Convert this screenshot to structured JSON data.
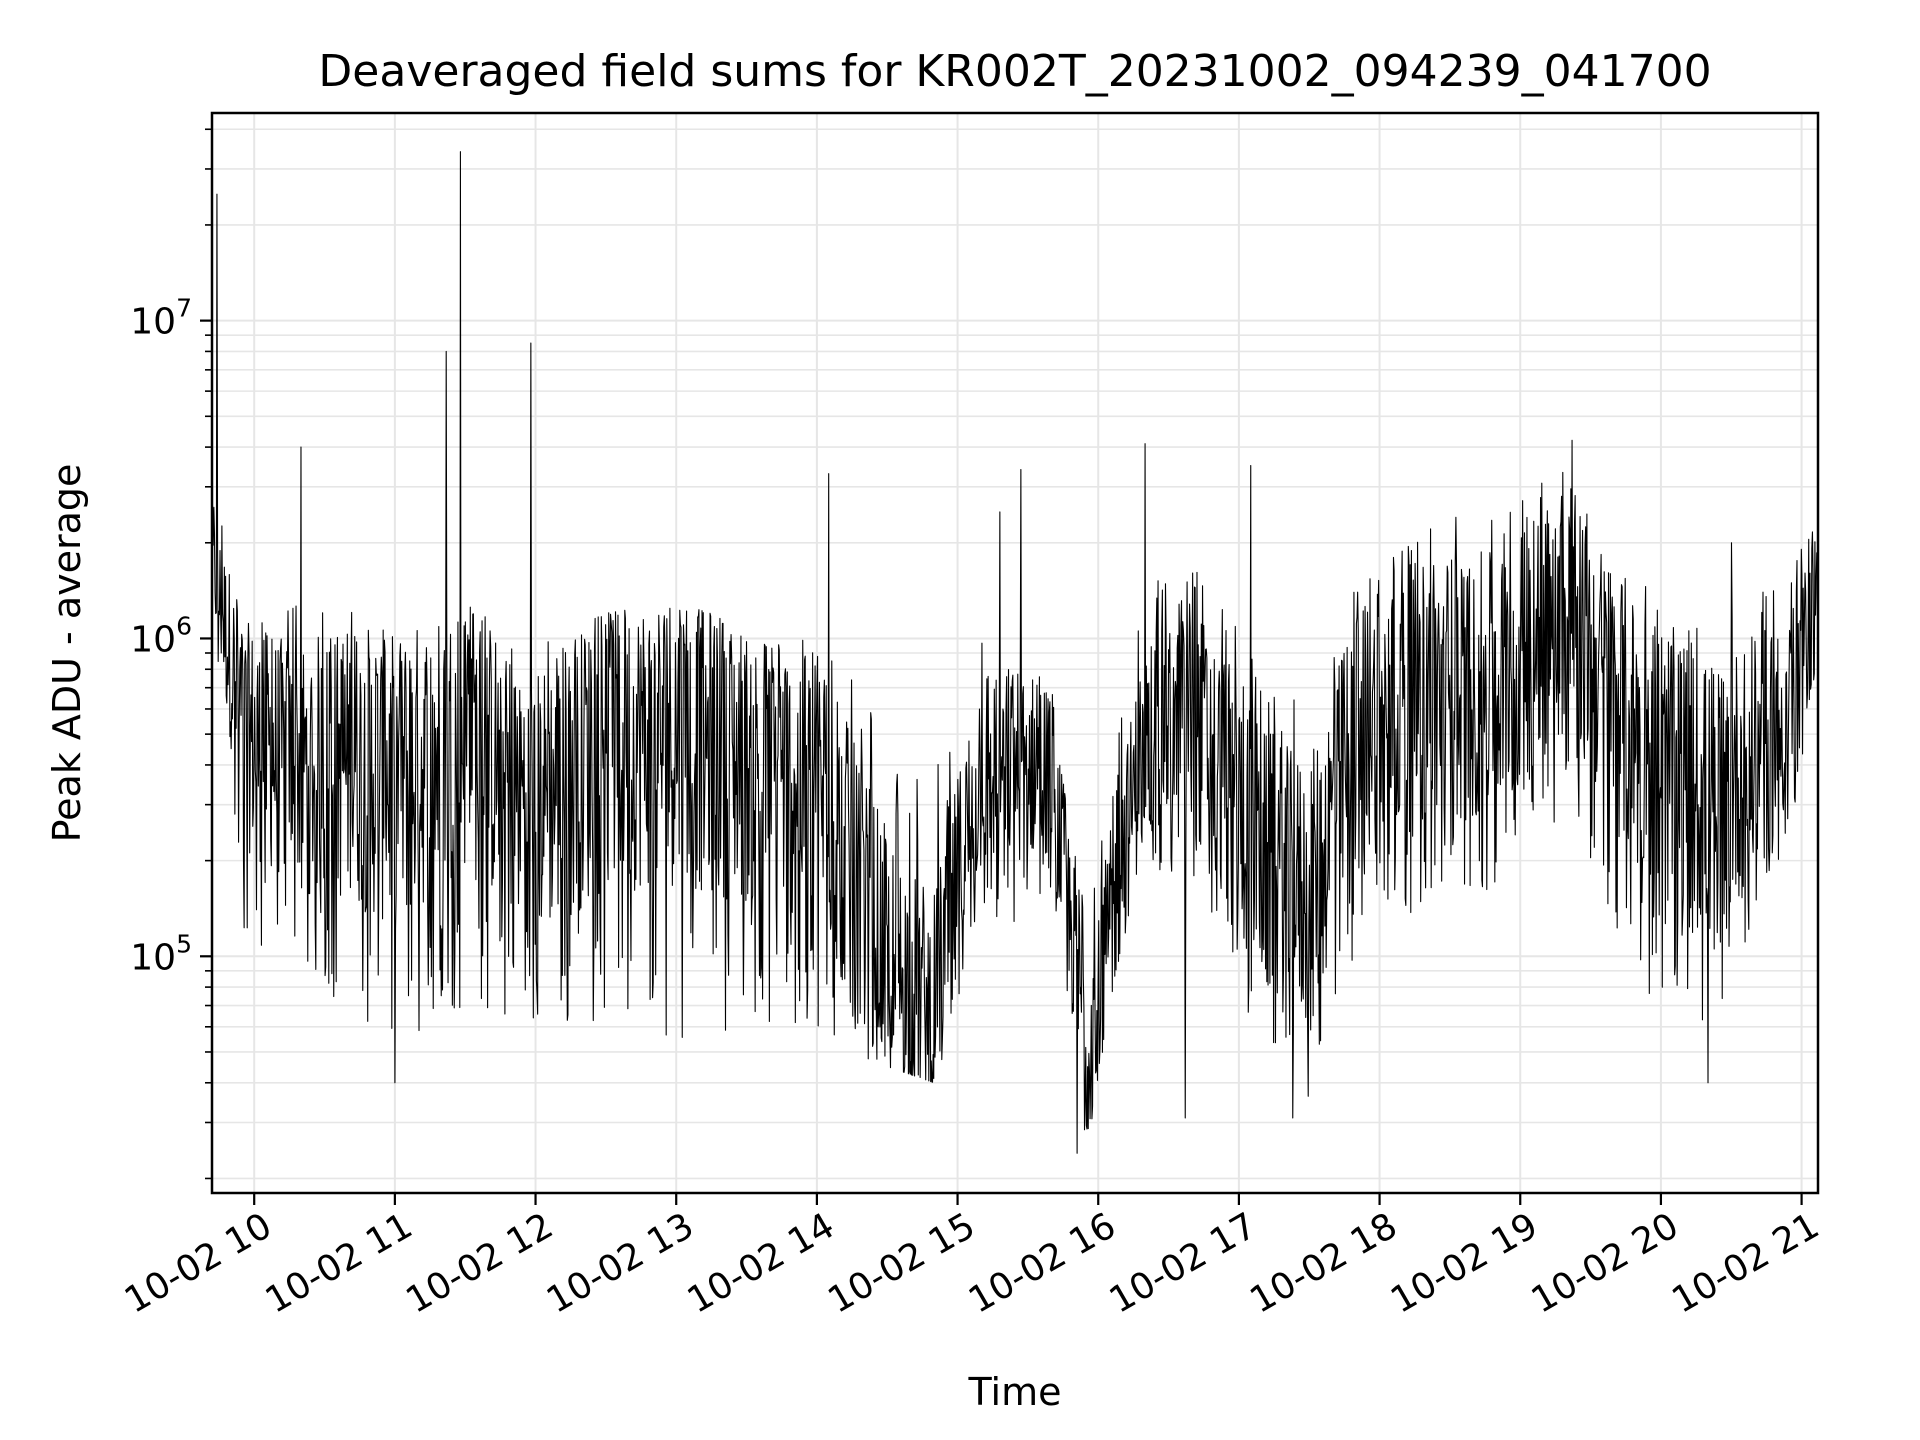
{
  "chart_data": {
    "type": "line",
    "title": "Deaveraged field sums for KR002T_20231002_094239_041700",
    "xlabel": "Time",
    "ylabel": "Peak ADU - average",
    "yscale": "log",
    "ylim": [
      18000,
      45000000
    ],
    "grid": true,
    "line_color": "#000000",
    "x_ticks": [
      "10-02 10",
      "10-02 11",
      "10-02 12",
      "10-02 13",
      "10-02 14",
      "10-02 15",
      "10-02 16",
      "10-02 17",
      "10-02 18",
      "10-02 19",
      "10-02 20",
      "10-02 21"
    ],
    "y_ticks": [
      {
        "base": "10",
        "exp": "5",
        "value": 100000
      },
      {
        "base": "10",
        "exp": "6",
        "value": 1000000
      },
      {
        "base": "10",
        "exp": "7",
        "value": 10000000
      }
    ],
    "xlim": [
      "2023-10-02 09:42",
      "2023-10-02 21:07"
    ],
    "series": [
      {
        "envelope_hourly": [
          {
            "time": "09:42",
            "typical": 1800000,
            "low": 1200000,
            "high": 3500000
          },
          {
            "time": "09:56",
            "typical": 500000,
            "low": 100000,
            "high": 1100000
          },
          {
            "time": "10:15",
            "typical": 400000,
            "low": 100000,
            "high": 1300000
          },
          {
            "time": "10:45",
            "typical": 400000,
            "low": 60000,
            "high": 1200000
          },
          {
            "time": "11:00",
            "typical": 350000,
            "low": 45000,
            "high": 1000000
          },
          {
            "time": "11:30",
            "typical": 500000,
            "low": 70000,
            "high": 1300000
          },
          {
            "time": "12:00",
            "typical": 300000,
            "low": 60000,
            "high": 1000000
          },
          {
            "time": "12:30",
            "typical": 450000,
            "low": 60000,
            "high": 1200000
          },
          {
            "time": "13:00",
            "typical": 500000,
            "low": 55000,
            "high": 1300000
          },
          {
            "time": "13:30",
            "typical": 400000,
            "low": 60000,
            "high": 1100000
          },
          {
            "time": "14:00",
            "typical": 350000,
            "low": 55000,
            "high": 1000000
          },
          {
            "time": "14:30",
            "typical": 100000,
            "low": 45000,
            "high": 600000
          },
          {
            "time": "14:50",
            "typical": 70000,
            "low": 40000,
            "high": 400000
          },
          {
            "time": "15:10",
            "typical": 400000,
            "low": 100000,
            "high": 1000000
          },
          {
            "time": "15:40",
            "typical": 400000,
            "low": 150000,
            "high": 900000
          },
          {
            "time": "15:55",
            "typical": 50000,
            "low": 25000,
            "high": 150000
          },
          {
            "time": "16:20",
            "typical": 500000,
            "low": 200000,
            "high": 1500000
          },
          {
            "time": "16:45",
            "typical": 500000,
            "low": 150000,
            "high": 1800000
          },
          {
            "time": "17:10",
            "typical": 200000,
            "low": 50000,
            "high": 800000
          },
          {
            "time": "17:30",
            "typical": 150000,
            "low": 35000,
            "high": 600000
          },
          {
            "time": "17:50",
            "typical": 500000,
            "low": 100000,
            "high": 1500000
          },
          {
            "time": "18:20",
            "typical": 700000,
            "low": 150000,
            "high": 2500000
          },
          {
            "time": "18:50",
            "typical": 700000,
            "low": 150000,
            "high": 2500000
          },
          {
            "time": "19:20",
            "typical": 1200000,
            "low": 300000,
            "high": 3500000
          },
          {
            "time": "19:50",
            "typical": 500000,
            "low": 80000,
            "high": 1500000
          },
          {
            "time": "20:20",
            "typical": 300000,
            "low": 60000,
            "high": 1200000
          },
          {
            "time": "20:50",
            "typical": 500000,
            "low": 150000,
            "high": 1500000
          },
          {
            "time": "21:07",
            "typical": 1300000,
            "low": 700000,
            "high": 2500000
          }
        ],
        "spikes": [
          {
            "time": "09:44",
            "value": 25000000
          },
          {
            "time": "10:20",
            "value": 4000000
          },
          {
            "time": "11:22",
            "value": 8000000
          },
          {
            "time": "11:28",
            "value": 34000000
          },
          {
            "time": "11:58",
            "value": 8500000
          },
          {
            "time": "14:05",
            "value": 3300000
          },
          {
            "time": "15:18",
            "value": 2500000
          },
          {
            "time": "15:27",
            "value": 3400000
          },
          {
            "time": "16:20",
            "value": 4100000
          },
          {
            "time": "17:05",
            "value": 3500000
          },
          {
            "time": "19:22",
            "value": 4200000
          },
          {
            "time": "20:30",
            "value": 2000000
          }
        ],
        "dips": [
          {
            "time": "11:00",
            "value": 40000
          },
          {
            "time": "15:51",
            "value": 24000
          },
          {
            "time": "16:37",
            "value": 31000
          },
          {
            "time": "17:23",
            "value": 31000
          },
          {
            "time": "20:20",
            "value": 40000
          }
        ]
      }
    ]
  }
}
